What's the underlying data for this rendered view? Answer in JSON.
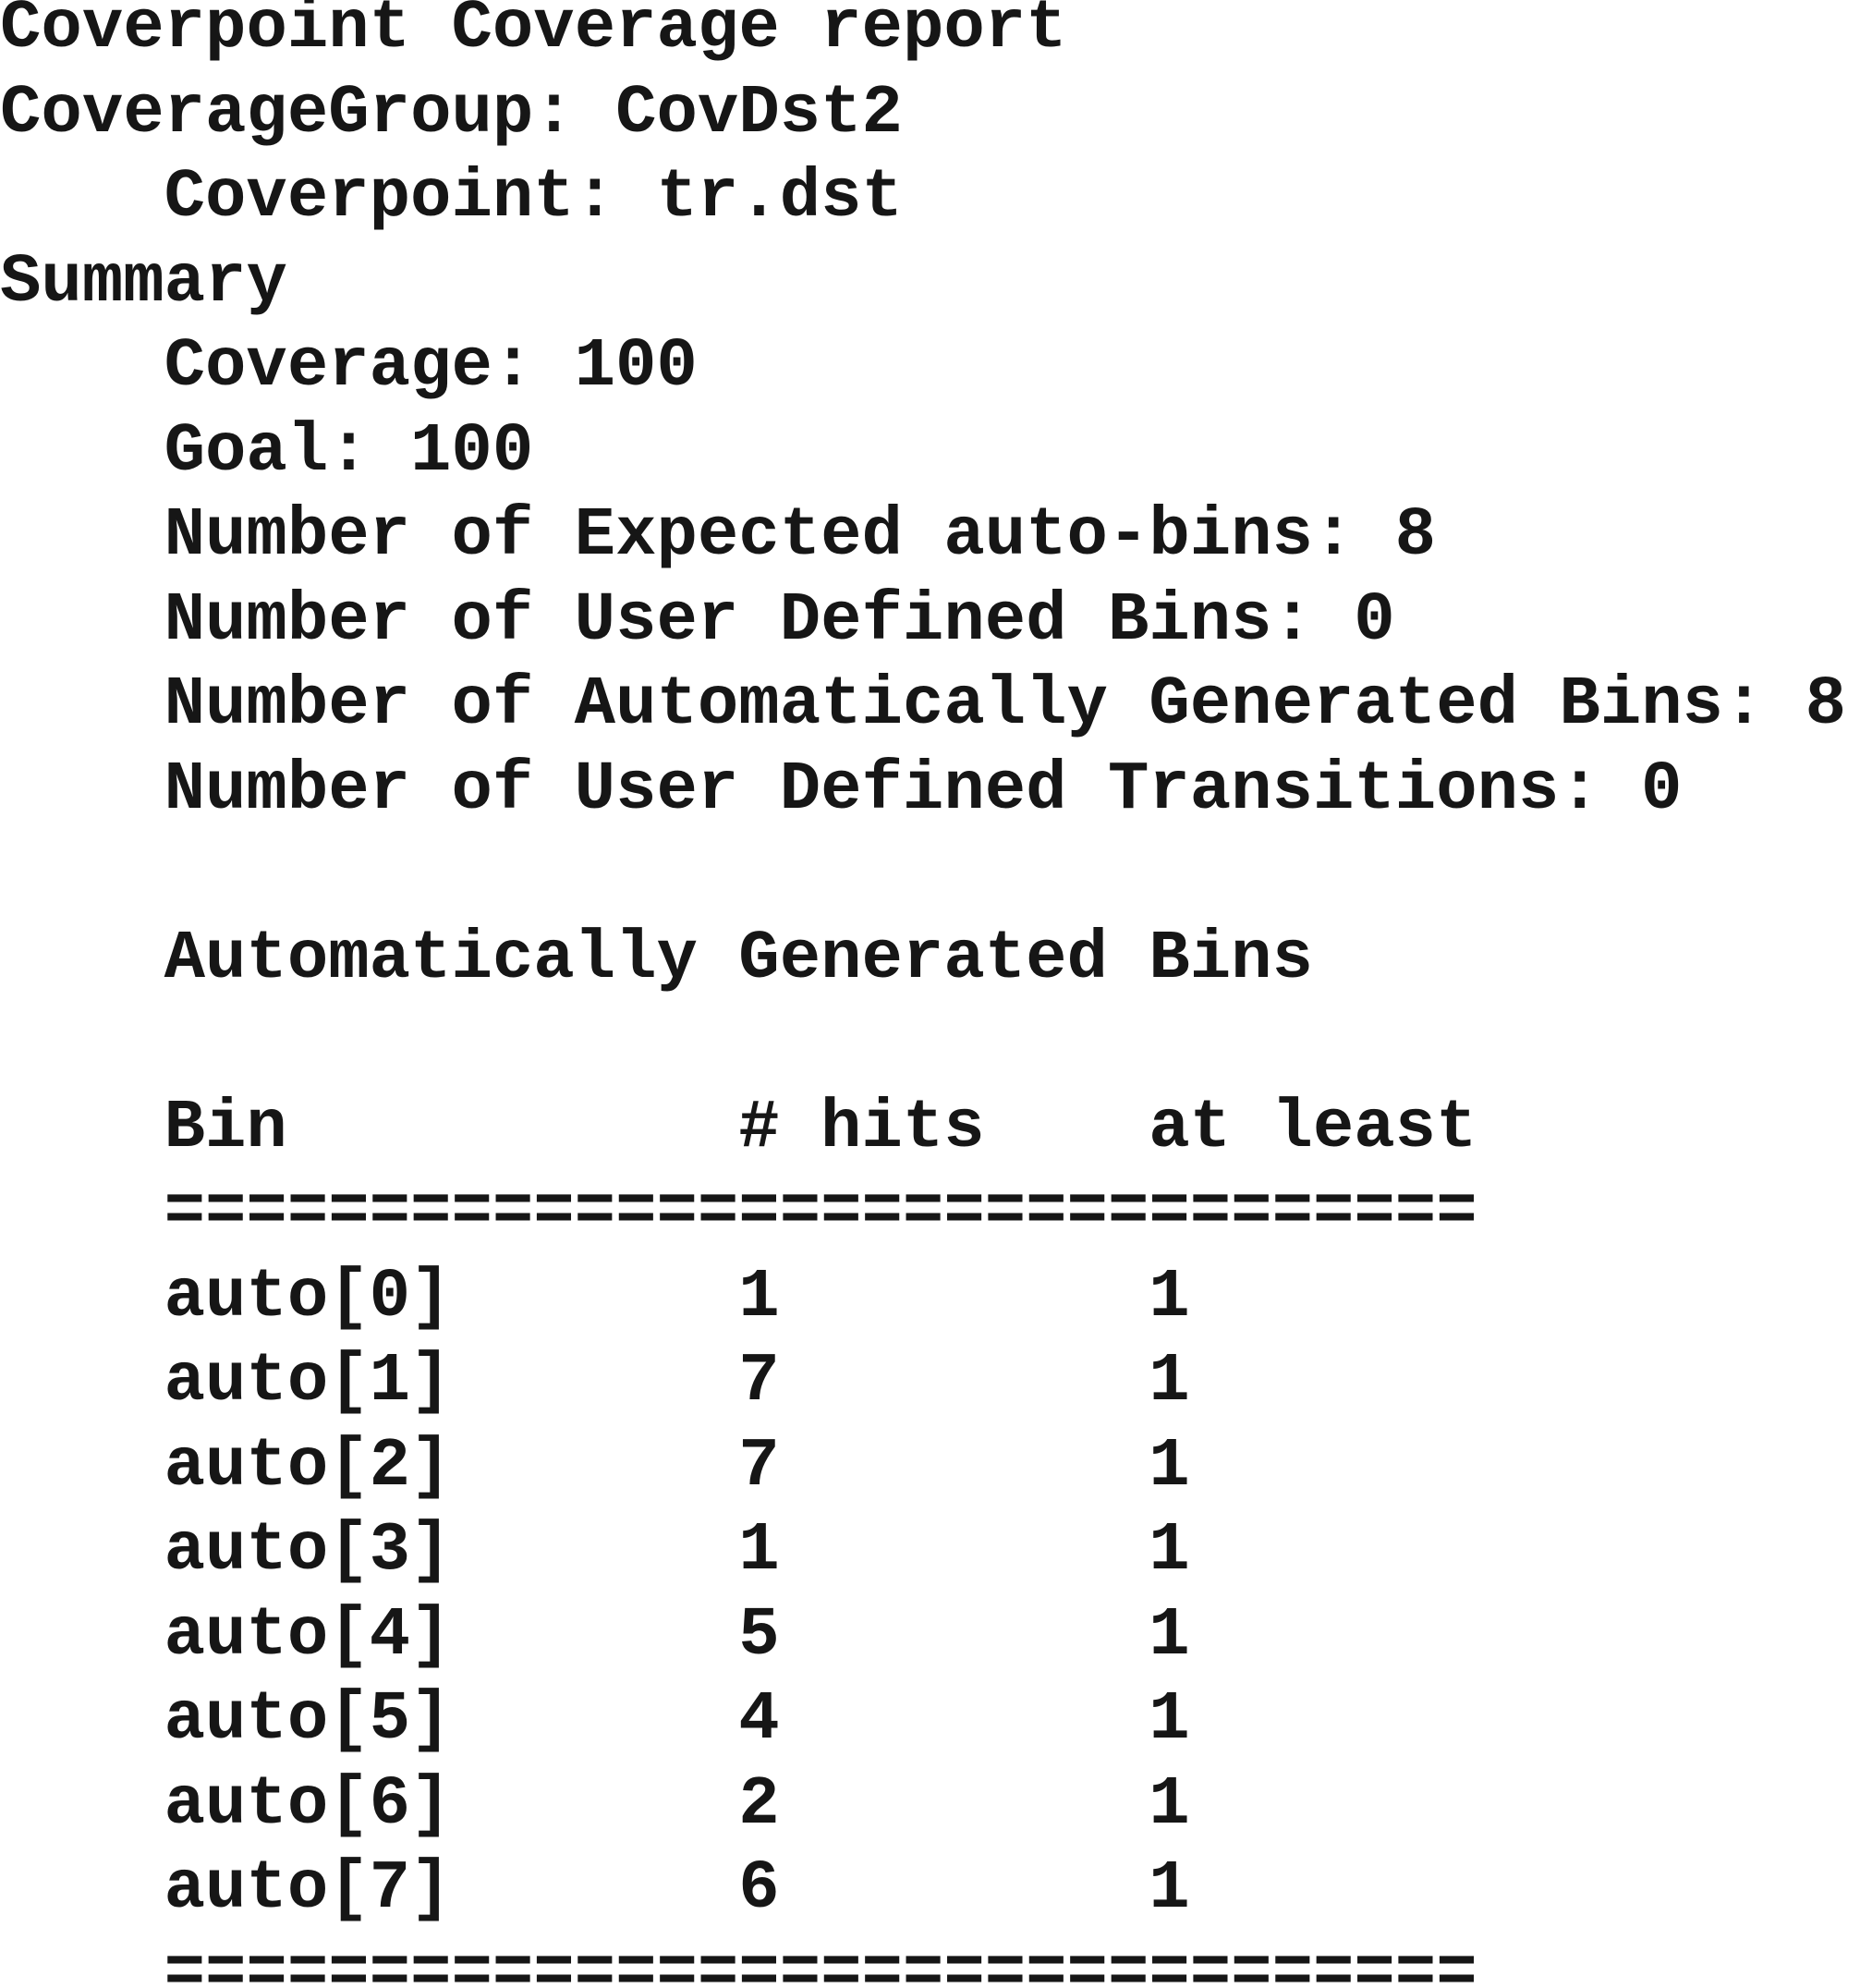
{
  "title": "Coverpoint Coverage report",
  "coverage_group": "CoverageGroup: CovDst2",
  "coverpoint": "Coverpoint: tr.dst",
  "summary": {
    "heading": "Summary",
    "items": [
      {
        "label": "Coverage:",
        "value": 100
      },
      {
        "label": "Goal:",
        "value": 100
      },
      {
        "label": "Number of Expected auto-bins:",
        "value": 8
      },
      {
        "label": "Number of User Defined Bins:",
        "value": 0
      },
      {
        "label": "Number of Automatically Generated Bins:",
        "value": 8
      },
      {
        "label": "Number of User Defined Transitions:",
        "value": 0
      }
    ]
  },
  "bins_heading": "Automatically Generated Bins",
  "table": {
    "headers": [
      "Bin",
      "# hits",
      "at least"
    ],
    "separator": "================================",
    "rows": [
      [
        "auto[0]",
        1,
        1
      ],
      [
        "auto[1]",
        7,
        1
      ],
      [
        "auto[2]",
        7,
        1
      ],
      [
        "auto[3]",
        1,
        1
      ],
      [
        "auto[4]",
        5,
        1
      ],
      [
        "auto[5]",
        4,
        1
      ],
      [
        "auto[6]",
        2,
        1
      ],
      [
        "auto[7]",
        6,
        1
      ]
    ],
    "footer_separator": "================================"
  }
}
